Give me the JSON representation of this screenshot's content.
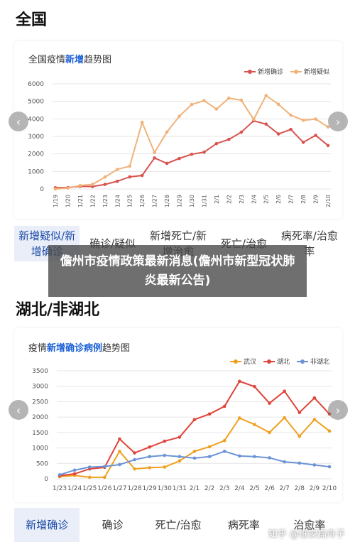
{
  "section1": {
    "title": "全国",
    "chart_title_prefix": "全国疫情",
    "chart_title_highlight": "新增",
    "chart_title_suffix": "趋势图",
    "tabs": [
      {
        "label": "新增疑似/新增确诊",
        "active": true
      },
      {
        "label": "确诊/疑似",
        "active": false
      },
      {
        "label": "新增死亡/新增治愈",
        "active": false
      },
      {
        "label": "死亡/治愈",
        "active": false
      },
      {
        "label": "病死率/治愈率",
        "active": false
      }
    ]
  },
  "section2": {
    "title": "湖北/非湖北",
    "chart_title_prefix": "疫情",
    "chart_title_highlight": "新增确诊病例",
    "chart_title_suffix": "趋势图",
    "tabs": [
      {
        "label": "新增确诊",
        "active": true
      },
      {
        "label": "确诊",
        "active": false
      },
      {
        "label": "死亡/治愈",
        "active": false
      },
      {
        "label": "病死率",
        "active": false
      },
      {
        "label": "治愈率",
        "active": false
      }
    ]
  },
  "overlay": {
    "text": "儋州市疫情政策最新消息(儋州市新型冠状肺炎最新公告)"
  },
  "watermark": "知乎 @谁家扁舟子",
  "nav": {
    "prev_icon": "‹",
    "next_icon": "›"
  },
  "chart_data": [
    {
      "type": "line",
      "title": "全国疫情新增趋势图",
      "categories": [
        "1/19",
        "1/20",
        "1/21",
        "1/22",
        "1/23",
        "1/24",
        "1/25",
        "1/26",
        "1/27",
        "1/28",
        "1/29",
        "1/30",
        "1/31",
        "2/1",
        "2/2",
        "2/3",
        "2/4",
        "2/5",
        "2/6",
        "2/7",
        "2/8",
        "2/9",
        "2/10"
      ],
      "ylim": [
        0,
        6000
      ],
      "yticks": [
        0,
        1000,
        2000,
        3000,
        4000,
        5000,
        6000
      ],
      "grid": true,
      "legend": "top-right",
      "series": [
        {
          "name": "新增确诊",
          "color": "#d9534f",
          "values": [
            70,
            80,
            150,
            140,
            260,
            440,
            690,
            770,
            1770,
            1460,
            1740,
            1980,
            2100,
            2590,
            2830,
            3240,
            3890,
            3700,
            3140,
            3400,
            2660,
            3060,
            2480
          ]
        },
        {
          "name": "新增疑似",
          "color": "#f0b27a",
          "values": [
            0,
            50,
            200,
            260,
            680,
            1120,
            1300,
            3800,
            2080,
            3250,
            4150,
            4820,
            5040,
            4560,
            5180,
            5070,
            3970,
            5330,
            4830,
            4210,
            3920,
            3990,
            3540
          ]
        }
      ]
    },
    {
      "type": "line",
      "title": "疫情新增确诊病例趋势图",
      "categories": [
        "1/23",
        "1/24",
        "1/25",
        "1/26",
        "1/27",
        "1/28",
        "1/29",
        "1/30",
        "1/31",
        "2/1",
        "2/2",
        "2/3",
        "2/4",
        "2/5",
        "2/6",
        "2/7",
        "2/8",
        "2/9",
        "2/10"
      ],
      "ylim": [
        0,
        3500
      ],
      "yticks": [
        0,
        500,
        1000,
        1500,
        2000,
        2500,
        3000,
        3500
      ],
      "grid": true,
      "legend": "top-right",
      "series": [
        {
          "name": "武汉",
          "color": "#f0a020",
          "values": [
            70,
            110,
            50,
            50,
            890,
            320,
            360,
            380,
            580,
            890,
            1040,
            1240,
            1970,
            1760,
            1500,
            1980,
            1380,
            1920,
            1550
          ]
        },
        {
          "name": "湖北",
          "color": "#e0443a",
          "values": [
            100,
            160,
            320,
            370,
            1290,
            840,
            1030,
            1220,
            1350,
            1920,
            2100,
            2350,
            3160,
            2990,
            2450,
            2840,
            2150,
            2620,
            2100
          ]
        },
        {
          "name": "非湖北",
          "color": "#6b93d6",
          "values": [
            130,
            280,
            380,
            400,
            460,
            620,
            720,
            760,
            720,
            670,
            720,
            890,
            740,
            720,
            680,
            550,
            510,
            450,
            390
          ]
        }
      ]
    }
  ]
}
